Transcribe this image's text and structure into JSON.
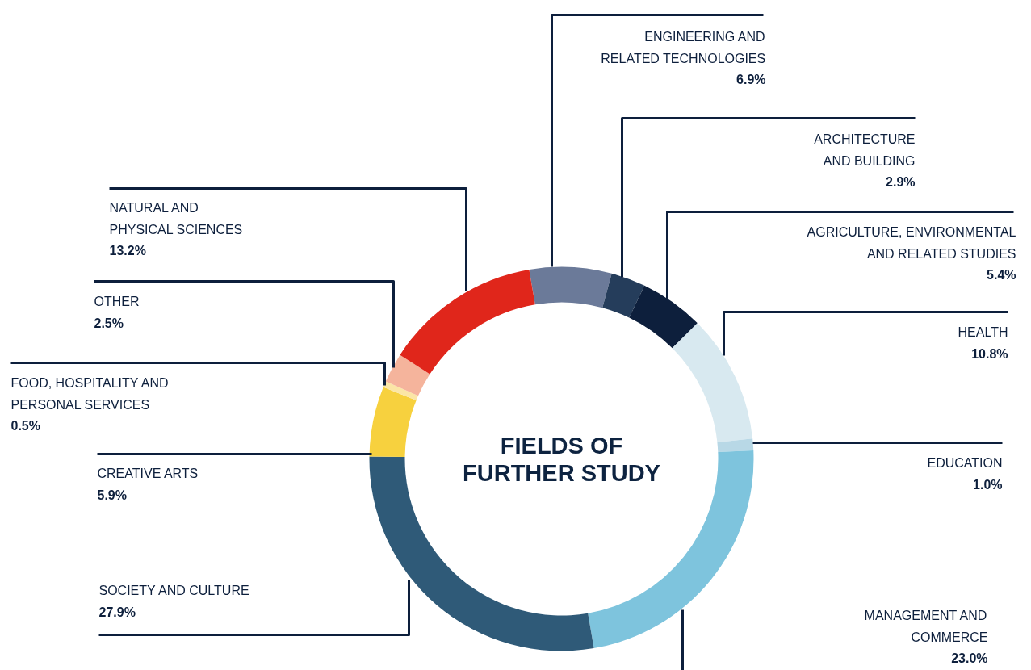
{
  "chart_data": {
    "type": "donut",
    "title": "FIELDS OF\nFURTHER STUDY",
    "categories": [
      "ENGINEERING AND\nRELATED TECHNOLOGIES",
      "ARCHITECTURE\nAND BUILDING",
      "AGRICULTURE, ENVIRONMENTAL\nAND RELATED STUDIES",
      "HEALTH",
      "EDUCATION",
      "MANAGEMENT AND\nCOMMERCE",
      "SOCIETY AND CULTURE",
      "CREATIVE ARTS",
      "FOOD, HOSPITALITY AND\nPERSONAL SERVICES",
      "OTHER",
      "NATURAL AND\nPHYSICAL SCIENCES"
    ],
    "values": [
      6.9,
      2.9,
      5.4,
      10.8,
      1.0,
      23.0,
      27.9,
      5.9,
      0.5,
      2.5,
      13.2
    ],
    "value_labels": [
      "6.9%",
      "2.9%",
      "5.4%",
      "10.8%",
      "1.0%",
      "23.0%",
      "27.9%",
      "5.9%",
      "0.5%",
      "2.5%",
      "13.2%"
    ],
    "colors": [
      "#6b7a99",
      "#253d5b",
      "#0d1f3c",
      "#d8e9f0",
      "#b8d8e6",
      "#7ec4dd",
      "#2f5a78",
      "#f7d13e",
      "#fbe6a6",
      "#f5b49c",
      "#e0261b"
    ]
  }
}
